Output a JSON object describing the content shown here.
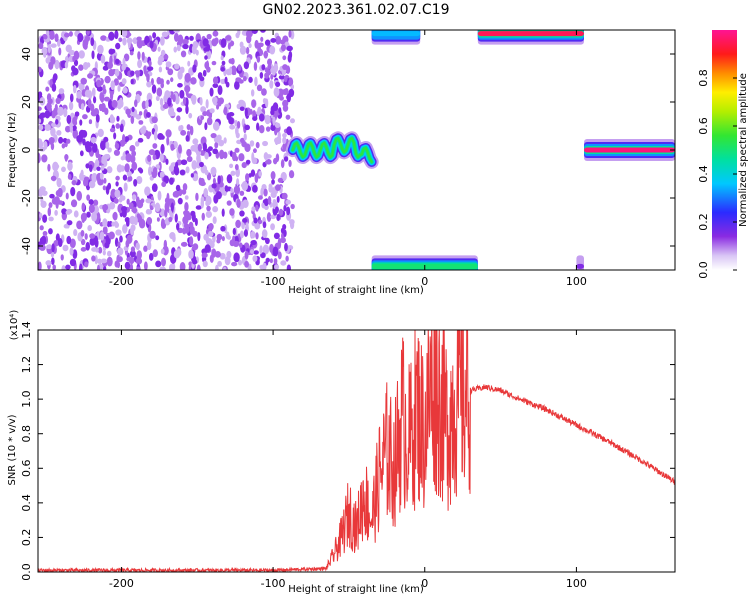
{
  "title": "GN02.2023.361.02.07.C19",
  "chart_data": [
    {
      "type": "heatmap",
      "name": "spectrogram",
      "xlabel": "Height of straight line (km)",
      "ylabel": "Frequency (Hz)",
      "xlim": [
        -255,
        165
      ],
      "ylim": [
        -50,
        50
      ],
      "xticks": [
        -200,
        -100,
        0,
        100
      ],
      "xtick_labels": [
        "-200",
        "-100",
        "0",
        "100"
      ],
      "yticks": [
        -40,
        -20,
        0,
        20,
        40
      ],
      "ytick_labels": [
        "-40",
        "-20",
        "0",
        "20",
        "40"
      ],
      "grid": false,
      "colorbar": {
        "label": "Normalized spectral amplitude",
        "range": [
          0.0,
          1.0
        ],
        "ticks": [
          0.0,
          0.2,
          0.4,
          0.6,
          0.8
        ],
        "tick_labels": [
          "0.0",
          "0.2",
          "0.4",
          "0.6",
          "0.8"
        ],
        "colormap": "rainbow (white-violet-blue-cyan-green-yellow-orange-red-magenta)"
      },
      "regions": [
        {
          "kind": "noise",
          "x": [
            -255,
            -87
          ],
          "y": [
            -50,
            50
          ],
          "amplitude": 0.1
        },
        {
          "kind": "wavy-line",
          "x": [
            -87,
            -35
          ],
          "center_freq": 0,
          "amplitude": 0.55
        },
        {
          "kind": "band",
          "x": [
            -35,
            -3
          ],
          "freq": 48.5,
          "amplitude": 0.35
        },
        {
          "kind": "band",
          "x": [
            35,
            105
          ],
          "freq": 48.5,
          "amplitude": 0.95
        },
        {
          "kind": "band",
          "x": [
            -35,
            35
          ],
          "freq": -48.5,
          "amplitude": 0.5
        },
        {
          "kind": "band",
          "x": [
            100,
            105
          ],
          "freq": -48.5,
          "amplitude": 0.15
        },
        {
          "kind": "band",
          "x": [
            105,
            165
          ],
          "freq": 0,
          "amplitude": 0.98
        }
      ]
    },
    {
      "type": "line",
      "name": "snr",
      "xlabel": "Height of straight line (km)",
      "ylabel": "SNR (10 * v/v)",
      "scale_note": "(x10⁴)",
      "xlim": [
        -255,
        165
      ],
      "ylim": [
        0,
        1.4
      ],
      "xticks": [
        -200,
        -100,
        0,
        100
      ],
      "xtick_labels": [
        "-200",
        "-100",
        "0",
        "100"
      ],
      "yticks": [
        0,
        0.2,
        0.4,
        0.6,
        0.8,
        1.0,
        1.2,
        1.4
      ],
      "ytick_labels": [
        "0.0",
        "0.2",
        "0.4",
        "0.6",
        "0.8",
        "1.0",
        "1.2",
        "1.4"
      ],
      "grid": false,
      "color": "#e8383a",
      "series": [
        {
          "x": [
            -255,
            -100,
            -65,
            -60,
            -55,
            -50,
            -45,
            -40,
            -35,
            -30,
            -25,
            -20,
            -15,
            -10,
            -5,
            0,
            5,
            10,
            15,
            20,
            25,
            30,
            35,
            40,
            50,
            60,
            80,
            100,
            120,
            140,
            165
          ],
          "values": [
            0.01,
            0.01,
            0.02,
            0.1,
            0.2,
            0.35,
            0.25,
            0.45,
            0.3,
            0.55,
            0.7,
            0.6,
            0.9,
            0.75,
            0.95,
            0.8,
            1.15,
            1.0,
            0.85,
            1.0,
            1.03,
            1.05,
            1.06,
            1.07,
            1.05,
            1.01,
            0.94,
            0.85,
            0.76,
            0.66,
            0.52
          ]
        }
      ]
    }
  ]
}
